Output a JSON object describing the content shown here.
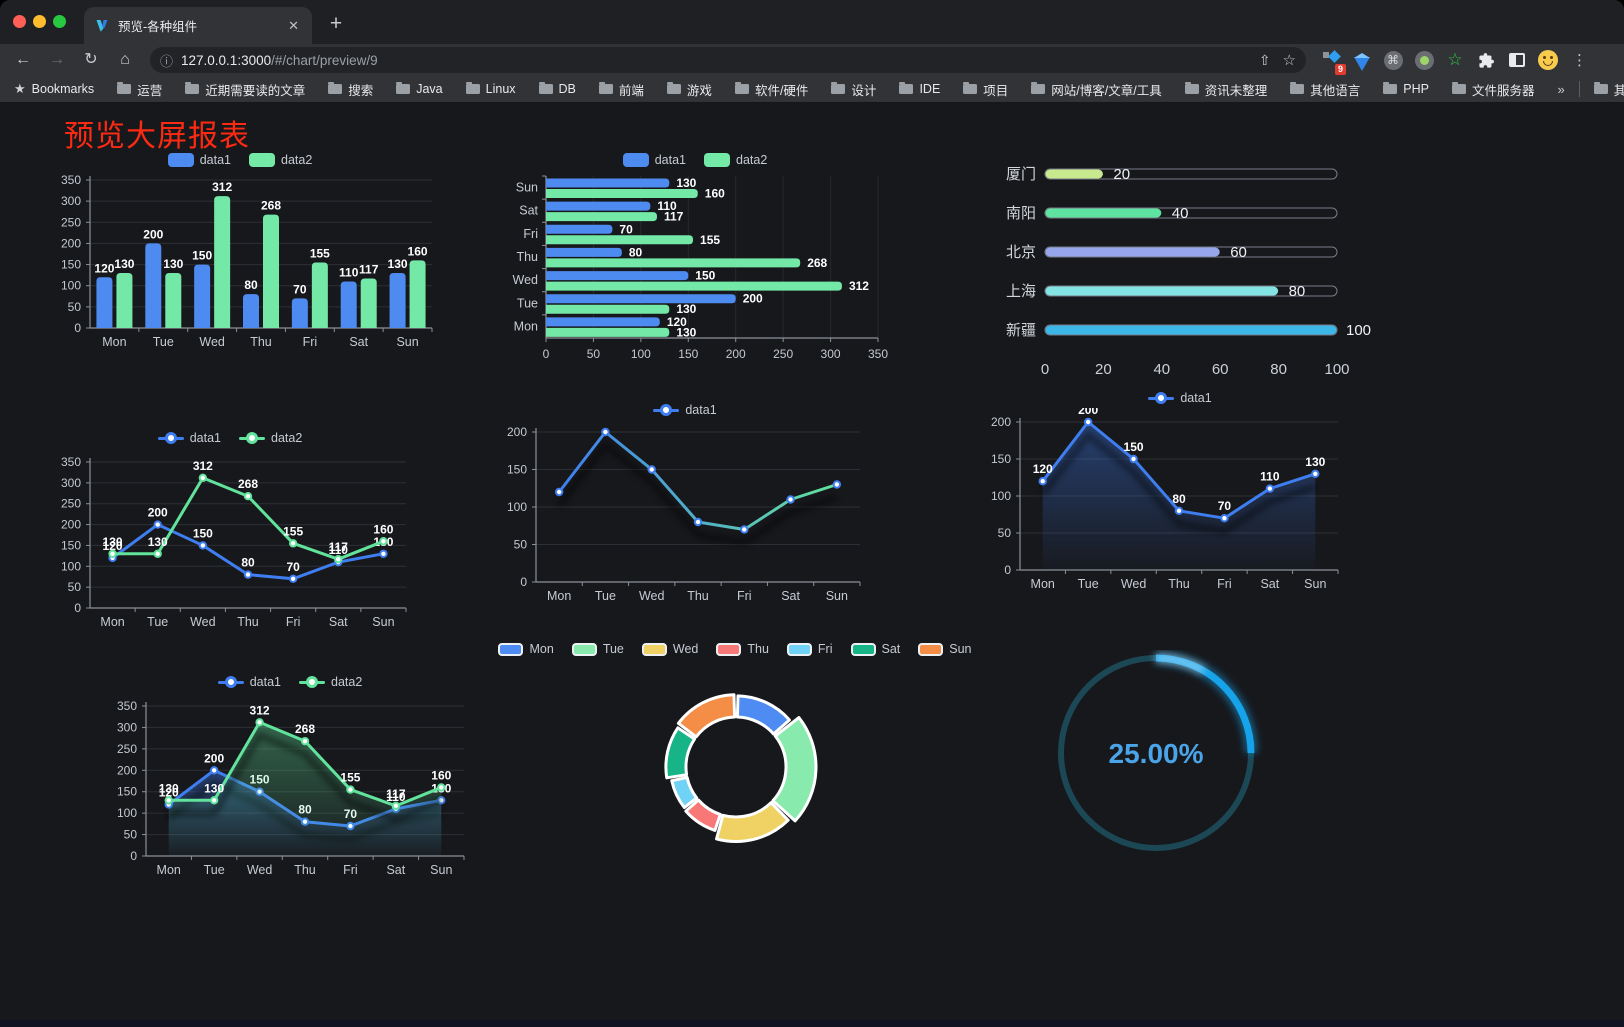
{
  "browser": {
    "tab_title": "预览-各种组件",
    "close_glyph": "✕",
    "new_tab_glyph": "+",
    "back_glyph": "←",
    "forward_glyph": "→",
    "reload_glyph": "↻",
    "home_glyph": "⌂",
    "info_glyph": "ⓘ",
    "share_glyph": "⇧",
    "star_glyph": "☆",
    "cmd_glyph": "⌘",
    "green_star_glyph": "☆",
    "puzzle_glyph": "🧩",
    "menu_glyph": "⋮",
    "extension_badge": "9",
    "url_host": "127.0.0.1:3000",
    "url_path": "/#/chart/preview/9",
    "bookmarks_root": "Bookmarks",
    "bookmark_folders": [
      "运营",
      "近期需要读的文章",
      "搜索",
      "Java",
      "Linux",
      "DB",
      "前端",
      "游戏",
      "软件/硬件",
      "设计",
      "IDE",
      "项目",
      "网站/博客/文章/工具",
      "资讯未整理",
      "其他语言",
      "PHP",
      "文件服务器"
    ],
    "bookmarks_overflow": "»",
    "other_bookmarks": "其他书签"
  },
  "page": {
    "title": "预览大屏报表",
    "title_color": "#fb2a12"
  },
  "chart_data": [
    {
      "id": "c1",
      "type": "bar",
      "categories": [
        "Mon",
        "Tue",
        "Wed",
        "Thu",
        "Fri",
        "Sat",
        "Sun"
      ],
      "series": [
        {
          "name": "data1",
          "color": "#4e8bf0",
          "values": [
            120,
            200,
            150,
            80,
            70,
            110,
            130
          ]
        },
        {
          "name": "data2",
          "color": "#73e8a7",
          "values": [
            130,
            130,
            312,
            268,
            155,
            117,
            160
          ]
        }
      ],
      "ylim": [
        0,
        350
      ],
      "yticks": [
        0,
        50,
        100,
        150,
        200,
        250,
        300,
        350
      ],
      "grid": true,
      "legend_position": "top",
      "data_labels": true
    },
    {
      "id": "c2",
      "type": "bar-horizontal",
      "categories": [
        "Mon",
        "Tue",
        "Wed",
        "Thu",
        "Fri",
        "Sat",
        "Sun"
      ],
      "series": [
        {
          "name": "data1",
          "color": "#4e8bf0",
          "values": [
            120,
            200,
            150,
            80,
            70,
            110,
            130
          ]
        },
        {
          "name": "data2",
          "color": "#73e8a7",
          "values": [
            130,
            130,
            312,
            268,
            155,
            117,
            160
          ]
        }
      ],
      "xlim": [
        0,
        350
      ],
      "xticks": [
        0,
        50,
        100,
        150,
        200,
        250,
        300,
        350
      ],
      "grid": true,
      "legend_position": "top",
      "data_labels": true
    },
    {
      "id": "c3",
      "type": "progress-bars",
      "max": 100,
      "xticks": [
        0,
        20,
        40,
        60,
        80,
        100
      ],
      "rows": [
        {
          "label": "厦门",
          "value": 20,
          "color": "#c9e98f"
        },
        {
          "label": "南阳",
          "value": 40,
          "color": "#5fe3a1"
        },
        {
          "label": "北京",
          "value": 60,
          "color": "#97a6eb"
        },
        {
          "label": "上海",
          "value": 80,
          "color": "#84e4e4"
        },
        {
          "label": "新疆",
          "value": 100,
          "color": "#3db6e8"
        }
      ]
    },
    {
      "id": "c4",
      "type": "line",
      "categories": [
        "Mon",
        "Tue",
        "Wed",
        "Thu",
        "Fri",
        "Sat",
        "Sun"
      ],
      "series": [
        {
          "name": "data1",
          "color": "#3f7ef0",
          "values": [
            120,
            200,
            150,
            80,
            70,
            110,
            130
          ]
        },
        {
          "name": "data2",
          "color": "#62e39c",
          "values": [
            130,
            130,
            312,
            268,
            155,
            117,
            160
          ]
        }
      ],
      "ylim": [
        0,
        350
      ],
      "yticks": [
        0,
        50,
        100,
        150,
        200,
        250,
        300,
        350
      ],
      "data_labels": true,
      "area": false,
      "legend_position": "top"
    },
    {
      "id": "c5",
      "type": "line-gradient",
      "categories": [
        "Mon",
        "Tue",
        "Wed",
        "Thu",
        "Fri",
        "Sat",
        "Sun"
      ],
      "series": [
        {
          "name": "data1",
          "color": "#3f7ef0",
          "values": [
            120,
            200,
            150,
            80,
            70,
            110,
            130
          ]
        }
      ],
      "gradient": [
        "#3f7ef0",
        "#62e39c"
      ],
      "ylim": [
        0,
        200
      ],
      "yticks": [
        0,
        50,
        100,
        150,
        200
      ],
      "data_labels": false,
      "shadow": true,
      "legend_position": "top"
    },
    {
      "id": "c6",
      "type": "line-area",
      "categories": [
        "Mon",
        "Tue",
        "Wed",
        "Thu",
        "Fri",
        "Sat",
        "Sun"
      ],
      "series": [
        {
          "name": "data1",
          "color": "#3f7ef0",
          "values": [
            120,
            200,
            150,
            80,
            70,
            110,
            130
          ]
        }
      ],
      "ylim": [
        0,
        200
      ],
      "yticks": [
        0,
        50,
        100,
        150,
        200
      ],
      "data_labels": true,
      "shadow": true,
      "legend_position": "top"
    },
    {
      "id": "c7",
      "type": "line",
      "categories": [
        "Mon",
        "Tue",
        "Wed",
        "Thu",
        "Fri",
        "Sat",
        "Sun"
      ],
      "series": [
        {
          "name": "data1",
          "color": "#3f7ef0",
          "values": [
            120,
            200,
            150,
            80,
            70,
            110,
            130
          ]
        },
        {
          "name": "data2",
          "color": "#62e39c",
          "values": [
            130,
            130,
            312,
            268,
            155,
            117,
            160
          ]
        }
      ],
      "ylim": [
        0,
        350
      ],
      "yticks": [
        0,
        50,
        100,
        150,
        200,
        250,
        300,
        350
      ],
      "data_labels": true,
      "area": true,
      "legend_position": "top"
    },
    {
      "id": "c8",
      "type": "pie",
      "subtype": "rose-doughnut",
      "categories": [
        "Mon",
        "Tue",
        "Wed",
        "Thu",
        "Fri",
        "Sat",
        "Sun"
      ],
      "values": [
        120,
        200,
        150,
        80,
        70,
        110,
        130
      ],
      "colors": [
        "#4e8bf2",
        "#88ebad",
        "#f0d264",
        "#f87777",
        "#70d2f5",
        "#16b487",
        "#f48d45"
      ],
      "border_color": "#ffffff",
      "legend_position": "top"
    },
    {
      "id": "c9",
      "type": "gauge",
      "value_label": "25.00%",
      "percent": 25,
      "track_color": "#1c4856",
      "arc_color": "#17a3ea",
      "text_color": "#4aa4e8"
    }
  ]
}
